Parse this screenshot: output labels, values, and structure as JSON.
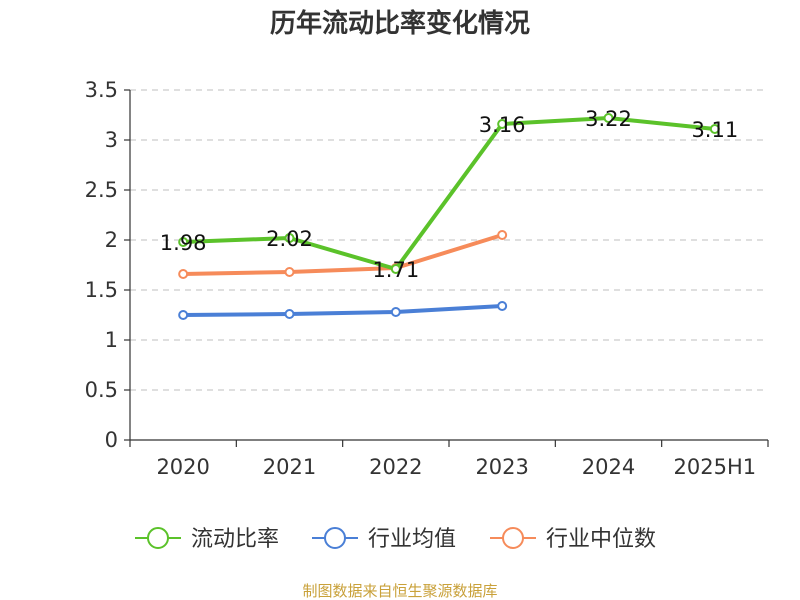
{
  "chart_data": {
    "type": "line",
    "title": "历年流动比率变化情况",
    "xlabel": "",
    "ylabel": "",
    "categories": [
      "2020",
      "2021",
      "2022",
      "2023",
      "2024",
      "2025H1"
    ],
    "ylim": [
      0,
      3.5
    ],
    "yticks": [
      "0",
      "0.5",
      "1",
      "1.5",
      "2",
      "2.5",
      "3",
      "3.5"
    ],
    "grid": true,
    "legend_position": "bottom",
    "series": [
      {
        "name": "流动比率",
        "color": "#5bc22a",
        "values": [
          1.98,
          2.02,
          1.71,
          3.16,
          3.22,
          3.11
        ],
        "labels": [
          "1.98",
          "2.02",
          "1.71",
          "3.16",
          "3.22",
          "3.11"
        ]
      },
      {
        "name": "行业均值",
        "color": "#4a7fd6",
        "values": [
          1.25,
          1.26,
          1.28,
          1.34,
          null,
          null
        ]
      },
      {
        "name": "行业中位数",
        "color": "#f68b5a",
        "values": [
          1.66,
          1.68,
          1.72,
          2.05,
          null,
          null
        ]
      }
    ]
  },
  "source_note": "制图数据来自恒生聚源数据库"
}
